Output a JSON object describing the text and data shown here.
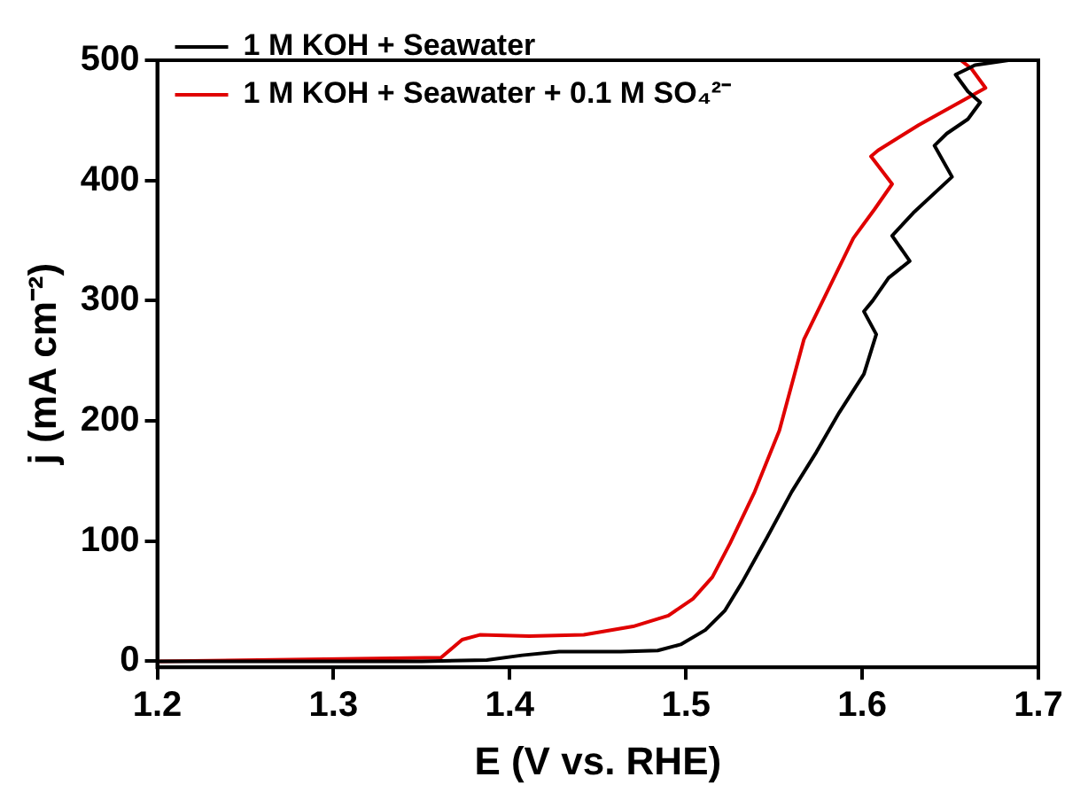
{
  "chart_data": {
    "type": "line",
    "xlabel": "E (V vs. RHE)",
    "ylabel": "j (mA cm⁻²)",
    "xlim": [
      1.2,
      1.7
    ],
    "xticks": [
      1.2,
      1.3,
      1.4,
      1.5,
      1.6,
      1.7
    ],
    "ylim": [
      -5,
      500
    ],
    "yticks": [
      0,
      100,
      200,
      300,
      400,
      500
    ],
    "grid": false,
    "legend": "top left",
    "marker": "none",
    "line_style": "solid",
    "series": [
      {
        "name": "1 M KOH + Seawater",
        "color": "#000000",
        "x": [
          1.2,
          1.35,
          1.387,
          1.407,
          1.428,
          1.463,
          1.484,
          1.497,
          1.511,
          1.522,
          1.532,
          1.546,
          1.56,
          1.574,
          1.587,
          1.601,
          1.608,
          1.601,
          1.606,
          1.615,
          1.627,
          1.617,
          1.629,
          1.651,
          1.641,
          1.648,
          1.66,
          1.667,
          1.66,
          1.653,
          1.66,
          1.664,
          1.683
        ],
        "values": [
          0,
          0,
          1,
          5,
          8,
          8,
          9,
          14,
          26,
          42,
          66,
          103,
          141,
          174,
          207,
          239,
          272,
          291,
          300,
          319,
          333,
          354,
          373,
          403,
          429,
          439,
          451,
          465,
          474,
          488,
          493,
          496,
          500
        ]
      },
      {
        "name": "1 M KOH + Seawater + 0.1 M SO₄²⁻",
        "color": "#e00000",
        "x": [
          1.2,
          1.361,
          1.373,
          1.383,
          1.411,
          1.442,
          1.47,
          1.49,
          1.504,
          1.515,
          1.525,
          1.539,
          1.553,
          1.567,
          1.581,
          1.595,
          1.607,
          1.617,
          1.605,
          1.609,
          1.632,
          1.67,
          1.662,
          1.656
        ],
        "values": [
          0,
          3,
          18,
          22,
          21,
          22,
          29,
          38,
          52,
          70,
          98,
          141,
          192,
          268,
          310,
          352,
          376,
          397,
          420,
          425,
          446,
          477,
          493,
          500
        ]
      }
    ]
  }
}
